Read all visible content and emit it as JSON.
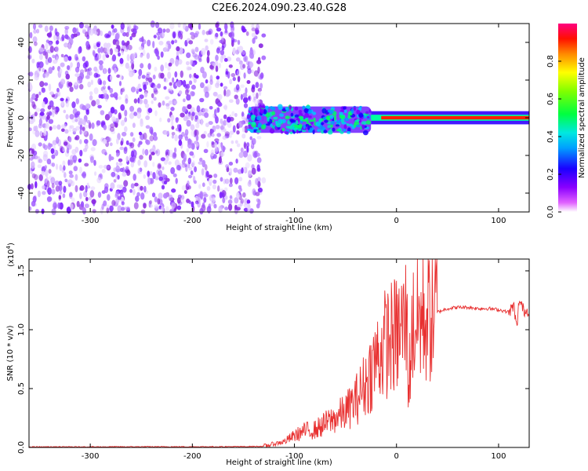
{
  "title": "C2E6.2024.090.23.40.G28",
  "chart_data": [
    {
      "type": "heatmap",
      "xlabel": "Height of straight line (km)",
      "ylabel": "Frequency (Hz)",
      "xlim": [
        -360,
        130
      ],
      "ylim": [
        -50,
        50
      ],
      "xticks": [
        -300,
        -200,
        -100,
        0,
        100
      ],
      "yticks": [
        -40,
        -20,
        0,
        20,
        40
      ],
      "regions": [
        {
          "x": [
            -360,
            -130
          ],
          "frequency_spread": [
            -50,
            50
          ],
          "normalized_amplitude": 0.15
        },
        {
          "x": [
            -145,
            -25
          ],
          "frequency_spread": [
            -8,
            6
          ],
          "normalized_amplitude": 0.4
        },
        {
          "x": [
            -25,
            130
          ],
          "frequency_spread": [
            -2,
            2
          ],
          "normalized_amplitude": 0.85
        }
      ],
      "colorbar": {
        "label": "Normalized spectral amplitude",
        "range": [
          0,
          1
        ],
        "ticks": [
          "0.0",
          "0.2",
          "0.4",
          "0.6",
          "0.8"
        ]
      }
    },
    {
      "type": "line",
      "xlabel": "Height of straight line (km)",
      "ylabel": "SNR (10 * v/v)",
      "scale_label": "(x10",
      "scale_exp": "4",
      "scale_close": ")",
      "xlim": [
        -360,
        130
      ],
      "ylim": [
        0,
        1.6
      ],
      "xticks": [
        -300,
        -200,
        -100,
        0,
        100
      ],
      "yticks": [
        "0.0",
        "0.5",
        "1.0",
        "1.5"
      ],
      "series": [
        {
          "color": "#e83030",
          "x": [
            -360,
            -300,
            -250,
            -200,
            -150,
            -130,
            -110,
            -100,
            -90,
            -80,
            -70,
            -60,
            -50,
            -40,
            -30,
            -20,
            -10,
            0,
            5,
            10,
            12,
            15,
            20,
            30,
            40,
            50,
            60,
            70,
            80,
            90,
            100,
            105,
            110,
            115,
            118,
            120,
            125,
            130
          ],
          "y": [
            0.005,
            0.005,
            0.006,
            0.006,
            0.007,
            0.01,
            0.05,
            0.1,
            0.14,
            0.15,
            0.2,
            0.25,
            0.3,
            0.4,
            0.55,
            0.75,
            0.9,
            0.95,
            1.0,
            1.1,
            0.5,
            1.0,
            1.08,
            1.12,
            1.15,
            1.18,
            1.19,
            1.19,
            1.18,
            1.18,
            1.17,
            1.16,
            1.15,
            1.2,
            1.0,
            1.25,
            1.16,
            1.16
          ]
        }
      ]
    }
  ]
}
